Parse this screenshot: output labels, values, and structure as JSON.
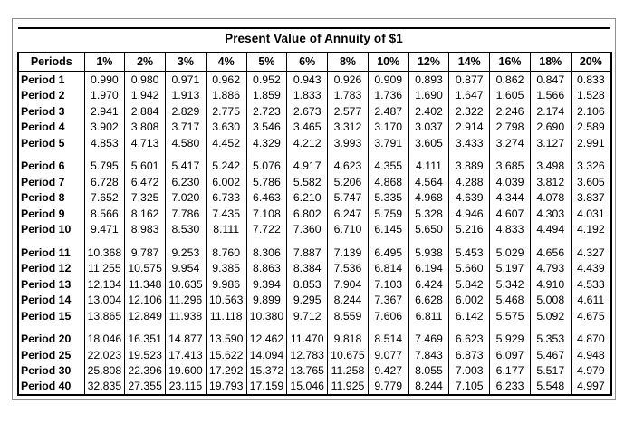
{
  "colors": {
    "background": "#ffffff",
    "frame_border": "#8f8f8f",
    "table_border": "#000000",
    "text": "#000000"
  },
  "title": "Present Value of Annuity of $1",
  "table": {
    "header": [
      "Periods",
      "1%",
      "2%",
      "3%",
      "4%",
      "5%",
      "6%",
      "8%",
      "10%",
      "12%",
      "14%",
      "16%",
      "18%",
      "20%"
    ],
    "row_groups": [
      {
        "rows": [
          {
            "label": "Period 1",
            "values": [
              "0.990",
              "0.980",
              "0.971",
              "0.962",
              "0.952",
              "0.943",
              "0.926",
              "0.909",
              "0.893",
              "0.877",
              "0.862",
              "0.847",
              "0.833"
            ]
          },
          {
            "label": "Period 2",
            "values": [
              "1.970",
              "1.942",
              "1.913",
              "1.886",
              "1.859",
              "1.833",
              "1.783",
              "1.736",
              "1.690",
              "1.647",
              "1.605",
              "1.566",
              "1.528"
            ]
          },
          {
            "label": "Period 3",
            "values": [
              "2.941",
              "2.884",
              "2.829",
              "2.775",
              "2.723",
              "2.673",
              "2.577",
              "2.487",
              "2.402",
              "2.322",
              "2.246",
              "2.174",
              "2.106"
            ]
          },
          {
            "label": "Period 4",
            "values": [
              "3.902",
              "3.808",
              "3.717",
              "3.630",
              "3.546",
              "3.465",
              "3.312",
              "3.170",
              "3.037",
              "2.914",
              "2.798",
              "2.690",
              "2.589"
            ]
          },
          {
            "label": "Period 5",
            "values": [
              "4.853",
              "4.713",
              "4.580",
              "4.452",
              "4.329",
              "4.212",
              "3.993",
              "3.791",
              "3.605",
              "3.433",
              "3.274",
              "3.127",
              "2.991"
            ]
          }
        ]
      },
      {
        "rows": [
          {
            "label": "Period 6",
            "values": [
              "5.795",
              "5.601",
              "5.417",
              "5.242",
              "5.076",
              "4.917",
              "4.623",
              "4.355",
              "4.111",
              "3.889",
              "3.685",
              "3.498",
              "3.326"
            ]
          },
          {
            "label": "Period 7",
            "values": [
              "6.728",
              "6.472",
              "6.230",
              "6.002",
              "5.786",
              "5.582",
              "5.206",
              "4.868",
              "4.564",
              "4.288",
              "4.039",
              "3.812",
              "3.605"
            ]
          },
          {
            "label": "Period 8",
            "values": [
              "7.652",
              "7.325",
              "7.020",
              "6.733",
              "6.463",
              "6.210",
              "5.747",
              "5.335",
              "4.968",
              "4.639",
              "4.344",
              "4.078",
              "3.837"
            ]
          },
          {
            "label": "Period 9",
            "values": [
              "8.566",
              "8.162",
              "7.786",
              "7.435",
              "7.108",
              "6.802",
              "6.247",
              "5.759",
              "5.328",
              "4.946",
              "4.607",
              "4.303",
              "4.031"
            ]
          },
          {
            "label": "Period 10",
            "values": [
              "9.471",
              "8.983",
              "8.530",
              "8.111",
              "7.722",
              "7.360",
              "6.710",
              "6.145",
              "5.650",
              "5.216",
              "4.833",
              "4.494",
              "4.192"
            ]
          }
        ]
      },
      {
        "rows": [
          {
            "label": "Period 11",
            "values": [
              "10.368",
              "9.787",
              "9.253",
              "8.760",
              "8.306",
              "7.887",
              "7.139",
              "6.495",
              "5.938",
              "5.453",
              "5.029",
              "4.656",
              "4.327"
            ]
          },
          {
            "label": "Period 12",
            "values": [
              "11.255",
              "10.575",
              "9.954",
              "9.385",
              "8.863",
              "8.384",
              "7.536",
              "6.814",
              "6.194",
              "5.660",
              "5.197",
              "4.793",
              "4.439"
            ]
          },
          {
            "label": "Period 13",
            "values": [
              "12.134",
              "11.348",
              "10.635",
              "9.986",
              "9.394",
              "8.853",
              "7.904",
              "7.103",
              "6.424",
              "5.842",
              "5.342",
              "4.910",
              "4.533"
            ]
          },
          {
            "label": "Period 14",
            "values": [
              "13.004",
              "12.106",
              "11.296",
              "10.563",
              "9.899",
              "9.295",
              "8.244",
              "7.367",
              "6.628",
              "6.002",
              "5.468",
              "5.008",
              "4.611"
            ]
          },
          {
            "label": "Period 15",
            "values": [
              "13.865",
              "12.849",
              "11.938",
              "11.118",
              "10.380",
              "9.712",
              "8.559",
              "7.606",
              "6.811",
              "6.142",
              "5.575",
              "5.092",
              "4.675"
            ]
          }
        ]
      },
      {
        "rows": [
          {
            "label": "Period 20",
            "values": [
              "18.046",
              "16.351",
              "14.877",
              "13.590",
              "12.462",
              "11.470",
              "9.818",
              "8.514",
              "7.469",
              "6.623",
              "5.929",
              "5.353",
              "4.870"
            ]
          },
          {
            "label": "Period 25",
            "values": [
              "22.023",
              "19.523",
              "17.413",
              "15.622",
              "14.094",
              "12.783",
              "10.675",
              "9.077",
              "7.843",
              "6.873",
              "6.097",
              "5.467",
              "4.948"
            ]
          },
          {
            "label": "Period 30",
            "values": [
              "25.808",
              "22.396",
              "19.600",
              "17.292",
              "15.372",
              "13.765",
              "11.258",
              "9.427",
              "8.055",
              "7.003",
              "6.177",
              "5.517",
              "4.979"
            ]
          },
          {
            "label": "Period 40",
            "values": [
              "32.835",
              "27.355",
              "23.115",
              "19.793",
              "17.159",
              "15.046",
              "11.925",
              "9.779",
              "8.244",
              "7.105",
              "6.233",
              "5.548",
              "4.997"
            ]
          }
        ]
      }
    ]
  }
}
